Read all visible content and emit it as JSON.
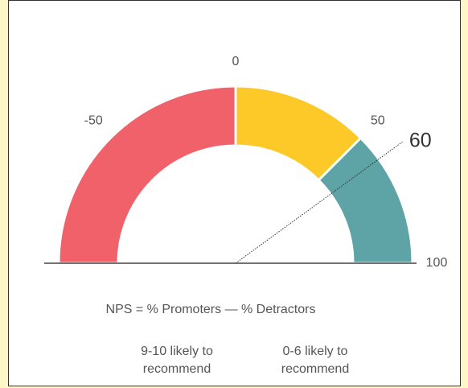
{
  "chart_data": {
    "type": "gauge",
    "lim": [
      -100,
      100
    ],
    "ticks": [
      -50,
      0,
      50,
      100
    ],
    "bands": [
      {
        "from": -100,
        "to": 0,
        "color": "#f0616a"
      },
      {
        "from": 0,
        "to": 50,
        "color": "#fcc928"
      },
      {
        "from": 50,
        "to": 100,
        "color": "#5ea3a6"
      }
    ],
    "value": 60,
    "formula": "NPS = % Promoters — % Detractors",
    "notes": [
      [
        "9-10 likely to",
        "recommend"
      ],
      [
        "0-6 likely to",
        "recommend"
      ]
    ]
  }
}
